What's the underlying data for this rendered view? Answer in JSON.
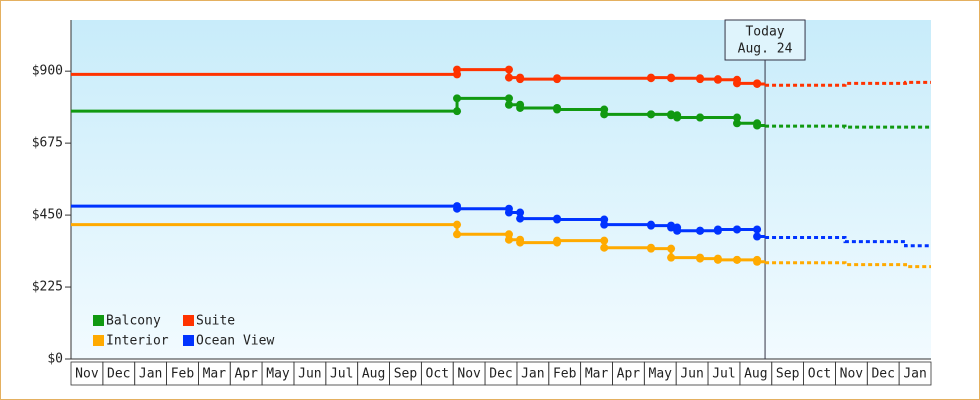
{
  "chart_data": {
    "type": "step-line",
    "xlim": [
      0,
      27
    ],
    "xticks": [
      {
        "value": 0.5,
        "label": "Nov"
      },
      {
        "value": 1.5,
        "label": "Dec"
      },
      {
        "value": 2.5,
        "label": "Jan"
      },
      {
        "value": 3.5,
        "label": "Feb"
      },
      {
        "value": 4.5,
        "label": "Mar"
      },
      {
        "value": 5.5,
        "label": "Apr"
      },
      {
        "value": 6.5,
        "label": "May"
      },
      {
        "value": 7.5,
        "label": "Jun"
      },
      {
        "value": 8.5,
        "label": "Jul"
      },
      {
        "value": 9.5,
        "label": "Aug"
      },
      {
        "value": 10.5,
        "label": "Sep"
      },
      {
        "value": 11.5,
        "label": "Oct"
      },
      {
        "value": 12.5,
        "label": "Nov"
      },
      {
        "value": 13.5,
        "label": "Dec"
      },
      {
        "value": 14.5,
        "label": "Jan"
      },
      {
        "value": 15.5,
        "label": "Feb"
      },
      {
        "value": 16.5,
        "label": "Mar"
      },
      {
        "value": 17.5,
        "label": "Apr"
      },
      {
        "value": 18.5,
        "label": "May"
      },
      {
        "value": 19.5,
        "label": "Jun"
      },
      {
        "value": 20.5,
        "label": "Jul"
      },
      {
        "value": 21.5,
        "label": "Aug"
      },
      {
        "value": 22.5,
        "label": "Sep"
      },
      {
        "value": 23.5,
        "label": "Oct"
      },
      {
        "value": 24.5,
        "label": "Nov"
      },
      {
        "value": 25.5,
        "label": "Dec"
      },
      {
        "value": 26.5,
        "label": "Jan"
      }
    ],
    "ylim": [
      0,
      1060
    ],
    "yticks": [
      {
        "value": 0,
        "label": "$0"
      },
      {
        "value": 225,
        "label": "$225"
      },
      {
        "value": 450,
        "label": "$450"
      },
      {
        "value": 675,
        "label": "$675"
      },
      {
        "value": 900,
        "label": "$900"
      }
    ],
    "annotation": {
      "lines": [
        "Today",
        "Aug. 24"
      ],
      "x": 21.79
    },
    "series": [
      {
        "name": "Balcony",
        "color": "#119911",
        "x": [
          0,
          12.12,
          13.75,
          14.1,
          15.26,
          16.74,
          18.21,
          18.84,
          19.03,
          19.75,
          20.91,
          21.54
        ],
        "values": [
          775,
          815,
          795,
          785,
          780,
          765,
          765,
          762,
          755,
          755,
          737,
          730
        ],
        "forecast": {
          "x": [
            21.79,
            24.3
          ],
          "values": [
            728,
            725
          ]
        }
      },
      {
        "name": "Suite",
        "color": "#ff3300",
        "x": [
          0,
          12.12,
          13.75,
          14.1,
          15.26,
          18.21,
          18.84,
          19.75,
          20.31,
          20.91,
          21.54
        ],
        "values": [
          890,
          905,
          880,
          875,
          878,
          880,
          878,
          875,
          873,
          862,
          860
        ],
        "forecast": {
          "x": [
            21.79,
            24.3,
            26.2
          ],
          "values": [
            856,
            862,
            865
          ]
        }
      },
      {
        "name": "Interior",
        "color": "#ffaa00",
        "x": [
          0,
          12.12,
          13.75,
          14.1,
          15.26,
          16.74,
          18.21,
          18.84,
          19.75,
          20.31,
          20.91,
          21.54
        ],
        "values": [
          420,
          390,
          373,
          364,
          370,
          348,
          345,
          317,
          314,
          310,
          310,
          304
        ],
        "forecast": {
          "x": [
            21.79,
            24.3,
            26.2
          ],
          "values": [
            301,
            295,
            289
          ]
        }
      },
      {
        "name": "Ocean View",
        "color": "#0033ff",
        "x": [
          0,
          12.12,
          13.75,
          14.1,
          15.26,
          16.74,
          18.21,
          18.84,
          19.03,
          19.75,
          20.31,
          20.91,
          21.54
        ],
        "values": [
          478,
          470,
          458,
          439,
          436,
          420,
          417,
          411,
          401,
          401,
          405,
          405,
          383
        ],
        "forecast": {
          "x": [
            21.79,
            24.3,
            26.2
          ],
          "values": [
            380,
            367,
            354
          ]
        }
      }
    ]
  }
}
